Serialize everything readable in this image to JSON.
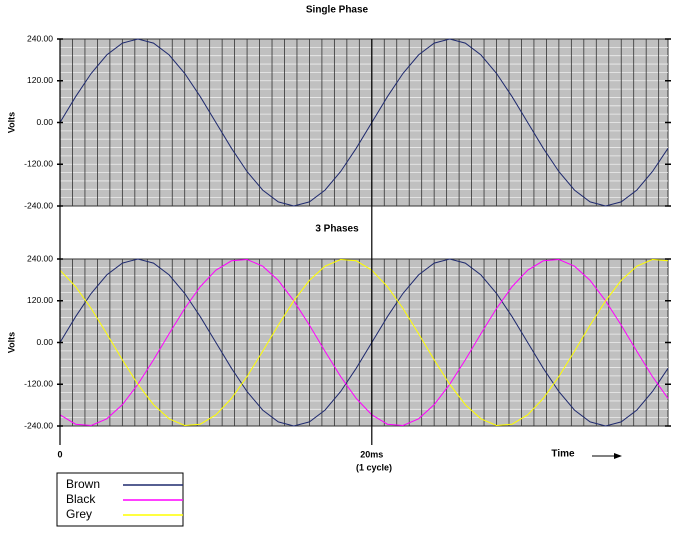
{
  "chart_data": [
    {
      "type": "line",
      "title": "Single Phase",
      "ylabel": "Volts",
      "x": [
        0,
        1,
        2,
        3,
        4,
        5,
        6,
        7,
        8,
        9,
        10,
        11,
        12,
        13,
        14,
        15,
        16,
        17,
        18,
        19,
        20,
        21,
        22,
        23,
        24,
        25,
        26,
        27,
        28,
        29,
        30,
        31,
        32,
        33,
        34,
        35,
        36,
        37,
        38,
        39
      ],
      "values": [
        0,
        74.2,
        141.1,
        194.2,
        228.3,
        240,
        228.3,
        194.2,
        141.1,
        74.2,
        0,
        -74.2,
        -141.1,
        -194.2,
        -228.3,
        -240,
        -228.3,
        -194.2,
        -141.1,
        -74.2,
        0,
        74.2,
        141.1,
        194.2,
        228.3,
        240,
        228.3,
        194.2,
        141.1,
        74.2,
        0,
        -74.2,
        -141.1,
        -194.2,
        -228.3,
        -240,
        -228.3,
        -194.2,
        -141.1,
        -74.2
      ],
      "color": "#1f2a6e",
      "xlim": [
        0,
        39
      ],
      "ylim": [
        -240,
        240
      ],
      "yticks": [
        {
          "value": 240,
          "label": "240.00"
        },
        {
          "value": 120,
          "label": "120.00"
        },
        {
          "value": 0,
          "label": "0.00"
        },
        {
          "value": -120,
          "label": "-120.00"
        },
        {
          "value": -240,
          "label": "-240.00"
        }
      ],
      "grid": true,
      "xgrid_interval": 0.8,
      "ygrid_interval": 24
    },
    {
      "type": "line",
      "title": "3 Phases",
      "ylabel": "Volts",
      "xlabel": "Time",
      "annotation": "(1 cycle)",
      "x": [
        0,
        1,
        2,
        3,
        4,
        5,
        6,
        7,
        8,
        9,
        10,
        11,
        12,
        13,
        14,
        15,
        16,
        17,
        18,
        19,
        20,
        21,
        22,
        23,
        24,
        25,
        26,
        27,
        28,
        29,
        30,
        31,
        32,
        33,
        34,
        35,
        36,
        37,
        38,
        39
      ],
      "series": [
        {
          "name": "Brown",
          "color": "#1f2a6e",
          "values": [
            0,
            74.2,
            141.1,
            194.2,
            228.3,
            240,
            228.3,
            194.2,
            141.1,
            74.2,
            0,
            -74.2,
            -141.1,
            -194.2,
            -228.3,
            -240,
            -228.3,
            -194.2,
            -141.1,
            -74.2,
            0,
            74.2,
            141.1,
            194.2,
            228.3,
            240,
            228.3,
            194.2,
            141.1,
            74.2,
            0,
            -74.2,
            -141.1,
            -194.2,
            -228.3,
            -240,
            -228.3,
            -194.2,
            -141.1,
            -74.2
          ]
        },
        {
          "name": "Black",
          "color": "#ff00ff",
          "values": [
            -207.8,
            -234.8,
            -238.7,
            -219.3,
            -178.4,
            -120,
            -49.9,
            25.1,
            97.6,
            160.6,
            207.8,
            234.8,
            238.7,
            219.3,
            178.4,
            120,
            49.9,
            -25.1,
            -97.6,
            -160.6,
            -207.8,
            -234.8,
            -238.7,
            -219.3,
            -178.4,
            -120,
            -49.9,
            25.1,
            97.6,
            160.6,
            207.8,
            234.8,
            238.7,
            219.3,
            178.4,
            120,
            49.9,
            -25.1,
            -97.6,
            -160.6
          ]
        },
        {
          "name": "Grey",
          "color": "#ffff00",
          "values": [
            207.8,
            160.6,
            97.6,
            25.1,
            -49.9,
            -120,
            -178.4,
            -219.3,
            -238.7,
            -234.8,
            -207.8,
            -160.6,
            -97.6,
            -25.1,
            49.9,
            120,
            178.4,
            219.3,
            238.7,
            234.8,
            207.8,
            160.6,
            97.6,
            25.1,
            -49.9,
            -120,
            -178.4,
            -219.3,
            -238.7,
            -234.8,
            -207.8,
            -160.6,
            -97.6,
            -25.1,
            49.9,
            120,
            178.4,
            219.3,
            238.7,
            234.8
          ]
        }
      ],
      "xlim": [
        0,
        39
      ],
      "ylim": [
        -240,
        240
      ],
      "xticks": [
        0,
        {
          "value": 20,
          "label": "20ms"
        }
      ],
      "yticks": [
        {
          "value": 240,
          "label": "240.00"
        },
        {
          "value": 120,
          "label": "120.00"
        },
        {
          "value": 0,
          "label": "0.00"
        },
        {
          "value": -120,
          "label": "-120.00"
        },
        {
          "value": -240,
          "label": "-240.00"
        }
      ],
      "grid": true,
      "xgrid_interval": 0.8,
      "ygrid_interval": 24,
      "legend": "bottom-left"
    }
  ]
}
